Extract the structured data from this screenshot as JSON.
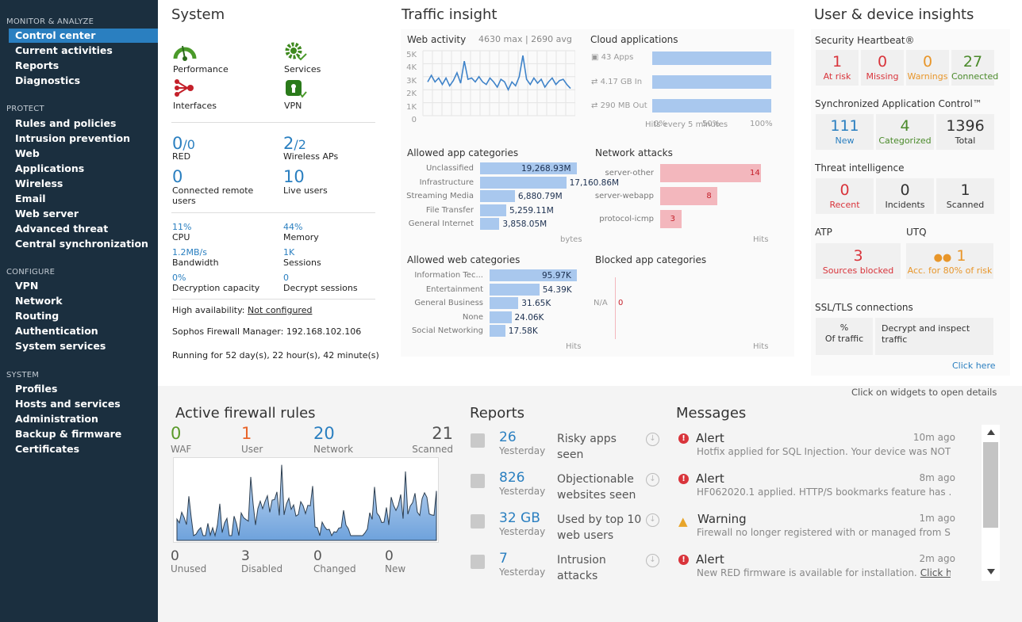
{
  "sidebar": {
    "sections": [
      {
        "title": "MONITOR & ANALYZE",
        "items": [
          "Control center",
          "Current activities",
          "Reports",
          "Diagnostics"
        ]
      },
      {
        "title": "PROTECT",
        "items": [
          "Rules and policies",
          "Intrusion prevention",
          "Web",
          "Applications",
          "Wireless",
          "Email",
          "Web server",
          "Advanced threat",
          "Central synchronization"
        ]
      },
      {
        "title": "CONFIGURE",
        "items": [
          "VPN",
          "Network",
          "Routing",
          "Authentication",
          "System services"
        ]
      },
      {
        "title": "SYSTEM",
        "items": [
          "Profiles",
          "Hosts and services",
          "Administration",
          "Backup & firmware",
          "Certificates"
        ]
      }
    ]
  },
  "system": {
    "title": "System",
    "icons": {
      "performance": "Performance",
      "services": "Services",
      "interfaces": "Interfaces",
      "vpn": "VPN"
    },
    "red": {
      "value": "0",
      "total": "/0",
      "label": "RED"
    },
    "aps": {
      "value": "2",
      "total": "/2",
      "label": "Wireless APs"
    },
    "remote": {
      "value": "0",
      "label": "Connected remote users"
    },
    "live": {
      "value": "10",
      "label": "Live users"
    },
    "cpu": {
      "value": "11%",
      "label": "CPU"
    },
    "memory": {
      "value": "44%",
      "label": "Memory"
    },
    "bandwidth": {
      "value": "1.2MB/s",
      "label": "Bandwidth"
    },
    "sessions": {
      "value": "1K",
      "label": "Sessions"
    },
    "decap": {
      "value": "0%",
      "label": "Decryption capacity"
    },
    "decsess": {
      "value": "0",
      "label": "Decrypt sessions"
    },
    "ha_label": "High availability:",
    "ha_value": "Not configured",
    "sfm": "Sophos Firewall Manager: 192.168.102.106",
    "uptime": "Running for 52 day(s), 22 hour(s), 42 minute(s)"
  },
  "traffic": {
    "title": "Traffic insight",
    "web_activity": {
      "title": "Web activity",
      "stats": "4630 max | 2690 avg",
      "yticks": [
        "5K",
        "4K",
        "3K",
        "2K",
        "1K",
        "0"
      ],
      "footer": "Hits every 5 minutes"
    },
    "cloud": {
      "title": "Cloud applications",
      "rows": [
        {
          "label": "43 Apps",
          "pct": 100
        },
        {
          "label": "4.17 GB In",
          "pct": 100
        },
        {
          "label": "290 MB Out",
          "pct": 100
        }
      ],
      "ticks": [
        "0%",
        "50%",
        "100%"
      ]
    },
    "app_cats": {
      "title": "Allowed app categories",
      "rows": [
        {
          "label": "Unclassified",
          "value": "19,268.93M",
          "pct": 100
        },
        {
          "label": "Infrastructure",
          "value": "17,160.86M",
          "pct": 89
        },
        {
          "label": "Streaming Media",
          "value": "6,880.79M",
          "pct": 36
        },
        {
          "label": "File Transfer",
          "value": "5,259.11M",
          "pct": 27
        },
        {
          "label": "General Internet",
          "value": "3,858.05M",
          "pct": 20
        }
      ],
      "unit": "bytes"
    },
    "attacks": {
      "title": "Network attacks",
      "rows": [
        {
          "label": "server-other",
          "value": "14",
          "pct": 100
        },
        {
          "label": "server-webapp",
          "value": "8",
          "pct": 57
        },
        {
          "label": "protocol-icmp",
          "value": "3",
          "pct": 21
        }
      ],
      "unit": "Hits"
    },
    "web_cats": {
      "title": "Allowed web categories",
      "rows": [
        {
          "label": "Information Tec...",
          "value": "95.97K",
          "pct": 100
        },
        {
          "label": "Entertainment",
          "value": "54.39K",
          "pct": 57
        },
        {
          "label": "General Business",
          "value": "31.65K",
          "pct": 33
        },
        {
          "label": "None",
          "value": "24.06K",
          "pct": 25
        },
        {
          "label": "Social Networking",
          "value": "17.58K",
          "pct": 18
        }
      ],
      "unit": "Hits"
    },
    "blocked": {
      "title": "Blocked app categories",
      "rows": [
        {
          "label": "N/A",
          "value": "0"
        }
      ],
      "unit": "Hits"
    }
  },
  "insights": {
    "title": "User & device insights",
    "heartbeat": {
      "title": "Security Heartbeat®",
      "cells": [
        {
          "n": "1",
          "t": "At risk",
          "color": "#d9343b"
        },
        {
          "n": "0",
          "t": "Missing",
          "color": "#d9343b"
        },
        {
          "n": "0",
          "t": "Warnings",
          "color": "#e8962a"
        },
        {
          "n": "27",
          "t": "Connected",
          "color": "#4a8a2a"
        }
      ]
    },
    "sac": {
      "title": "Synchronized Application Control™",
      "cells": [
        {
          "n": "111",
          "t": "New",
          "color": "#2a7fc0"
        },
        {
          "n": "4",
          "t": "Categorized",
          "color": "#4a8a2a"
        },
        {
          "n": "1396",
          "t": "Total",
          "color": "#333"
        }
      ]
    },
    "threat": {
      "title": "Threat intelligence",
      "cells": [
        {
          "n": "0",
          "t": "Recent",
          "color": "#d9343b"
        },
        {
          "n": "0",
          "t": "Incidents",
          "color": "#333"
        },
        {
          "n": "1",
          "t": "Scanned",
          "color": "#333"
        }
      ]
    },
    "atp": {
      "title": "ATP",
      "n": "3",
      "t": "Sources blocked"
    },
    "utq": {
      "title": "UTQ",
      "n": "1",
      "t": "Acc. for 80% of risk"
    },
    "ssl": {
      "title": "SSL/TLS connections",
      "pct_label": "%",
      "pct_sub": "Of traffic",
      "decrypt": "Decrypt and inspect traffic",
      "link": "Click here"
    },
    "hint": "Click on widgets to open details"
  },
  "firewall": {
    "title": "Active firewall rules",
    "top": [
      {
        "n": "0",
        "t": "WAF",
        "color": "#5a9a2a"
      },
      {
        "n": "1",
        "t": "User",
        "color": "#e8652a"
      },
      {
        "n": "20",
        "t": "Network",
        "color": "#2a7fc0"
      },
      {
        "n": "21",
        "t": "Scanned",
        "color": "#555"
      }
    ],
    "bottom": [
      {
        "n": "0",
        "t": "Unused"
      },
      {
        "n": "3",
        "t": "Disabled"
      },
      {
        "n": "0",
        "t": "Changed"
      },
      {
        "n": "0",
        "t": "New"
      }
    ]
  },
  "reports": {
    "title": "Reports",
    "items": [
      {
        "n": "26",
        "sub": "Yesterday",
        "label": "Risky apps seen"
      },
      {
        "n": "826",
        "sub": "Yesterday",
        "label": "Objectionable websites seen"
      },
      {
        "n": "32 GB",
        "sub": "Yesterday",
        "label": "Used by top 10 web users"
      },
      {
        "n": "7",
        "sub": "Yesterday",
        "label": "Intrusion attacks"
      }
    ]
  },
  "messages": {
    "title": "Messages",
    "items": [
      {
        "type": "Alert",
        "time": "10m ago",
        "text": "Hotfix applied for SQL Injection. Your device was NOT c..."
      },
      {
        "type": "Alert",
        "time": "8m ago",
        "text": "HF062020.1 applied. HTTP/S bookmarks feature has ..."
      },
      {
        "type": "Warning",
        "time": "1m ago",
        "text": "Firewall no longer registered with or managed from So..."
      },
      {
        "type": "Alert",
        "time": "2m ago",
        "text": "New RED firmware is available for installation.",
        "link": "Click he..."
      }
    ]
  }
}
